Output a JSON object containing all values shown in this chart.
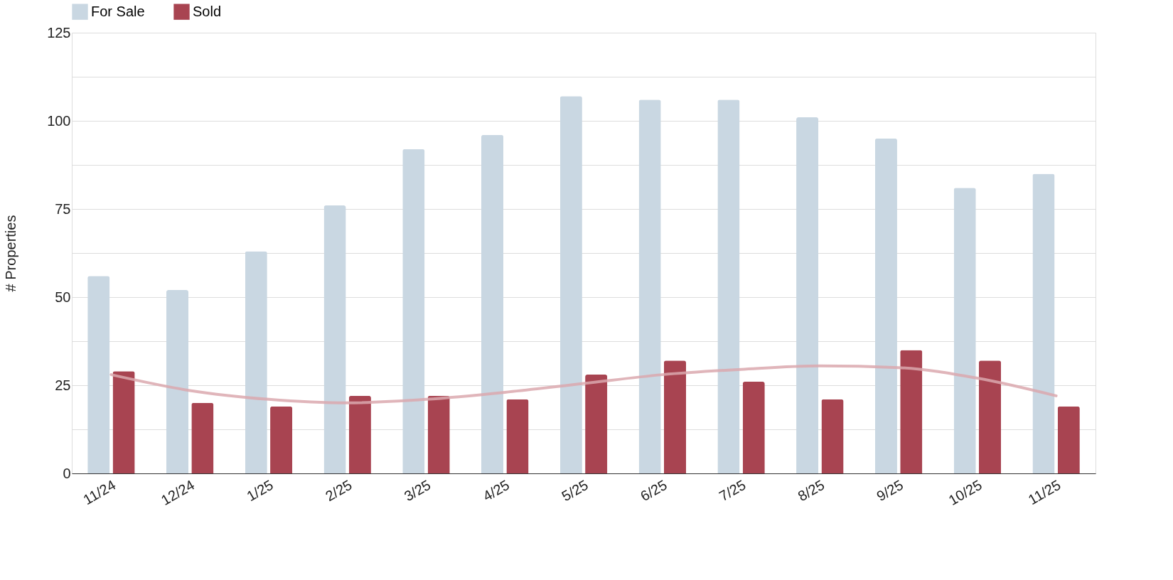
{
  "chart_data": {
    "type": "bar",
    "ylabel": "# Properties",
    "categories": [
      "11/24",
      "12/24",
      "1/25",
      "2/25",
      "3/25",
      "4/25",
      "5/25",
      "6/25",
      "7/25",
      "8/25",
      "9/25",
      "10/25",
      "11/25"
    ],
    "series": [
      {
        "name": "For Sale",
        "color": "#c9d7e2",
        "values": [
          56,
          52,
          63,
          76,
          92,
          96,
          107,
          106,
          106,
          101,
          95,
          81,
          85
        ]
      },
      {
        "name": "Sold",
        "color": "#a84451",
        "values": [
          29,
          20,
          19,
          22,
          22,
          21,
          28,
          32,
          26,
          21,
          35,
          32,
          19
        ]
      },
      {
        "type": "line",
        "color": "#dba8ae",
        "x": [
          "11/24",
          "12/24",
          "1/25",
          "2/25",
          "3/25",
          "4/25",
          "5/25",
          "6/25",
          "7/25",
          "8/25",
          "9/25",
          "10/25",
          "11/25"
        ],
        "values": [
          28,
          23.5,
          21,
          20,
          21,
          23,
          25.5,
          28,
          29.5,
          30.5,
          30,
          27,
          22
        ]
      }
    ],
    "ylim": [
      0,
      125
    ],
    "yticks": [
      0,
      {
        "value": 12.5,
        "label": null
      },
      25,
      {
        "value": 37.5,
        "label": null
      },
      50,
      {
        "value": 62.5,
        "label": null
      },
      75,
      {
        "value": 87.5,
        "label": null
      },
      100,
      {
        "value": 112.5,
        "label": null
      },
      125
    ],
    "grid": true,
    "legend": "top"
  }
}
